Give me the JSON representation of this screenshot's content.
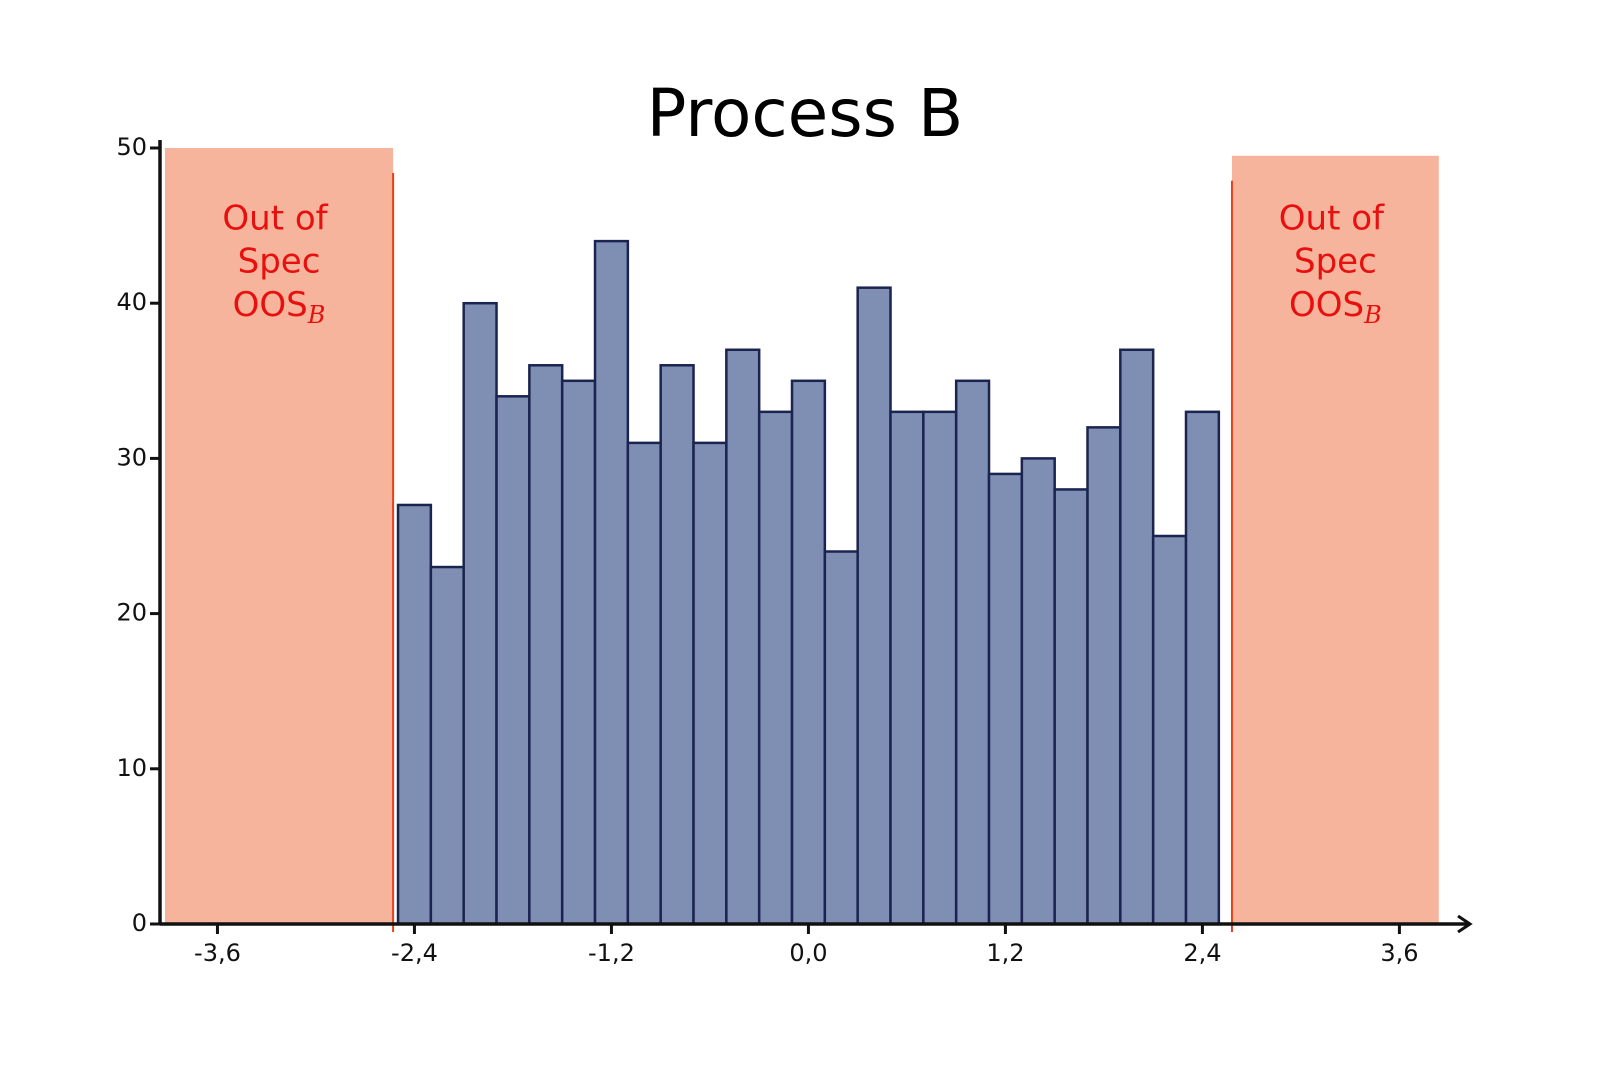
{
  "chart_data": {
    "type": "histogram",
    "title": "Process B",
    "bins": [
      -2.5,
      -2.3,
      -2.1,
      -1.9,
      -1.7,
      -1.5,
      -1.3,
      -1.1,
      -0.9,
      -0.7,
      -0.5,
      -0.3,
      -0.1,
      0.1,
      0.3,
      0.5,
      0.7,
      0.9,
      1.1,
      1.3,
      1.5,
      1.7,
      1.9,
      2.1,
      2.3,
      2.5
    ],
    "counts": [
      27,
      23,
      40,
      34,
      36,
      35,
      44,
      31,
      36,
      31,
      37,
      33,
      35,
      24,
      41,
      33,
      33,
      35,
      29,
      30,
      28,
      32,
      37,
      25,
      33
    ],
    "color": "#7f8fb4",
    "edgecolor": "#1b2450",
    "xlim": [
      -3.95,
      4.03
    ],
    "ylim": [
      0,
      50
    ],
    "xticks": [
      {
        "value": -3.6,
        "label": "-3,6"
      },
      {
        "value": -2.4,
        "label": "-2,4"
      },
      {
        "value": -1.2,
        "label": "-1,2"
      },
      {
        "value": 0,
        "label": "0,0"
      },
      {
        "value": 1.2,
        "label": "1,2"
      },
      {
        "value": 2.4,
        "label": "2,4"
      },
      {
        "value": 3.6,
        "label": "3,6"
      }
    ],
    "yticks": [
      0,
      10,
      20,
      30,
      40,
      50
    ],
    "regions": [
      {
        "x": [
          -3.92,
          -2.53
        ],
        "top": 50,
        "edge": -2.53,
        "label": "Out of",
        "label2": "Spec",
        "label3": "OOS",
        "subscript": "B",
        "color": "#f6b49c",
        "edgecolor": "#e8401c",
        "textcolor": "#e8100f"
      },
      {
        "x": [
          2.58,
          3.84
        ],
        "top": 49.5,
        "edge": 2.58,
        "label": "Out of",
        "label2": "Spec",
        "label3": "OOS",
        "subscript": "B",
        "color": "#f6b49c",
        "edgecolor": "#e8401c",
        "textcolor": "#e8100f"
      }
    ]
  }
}
